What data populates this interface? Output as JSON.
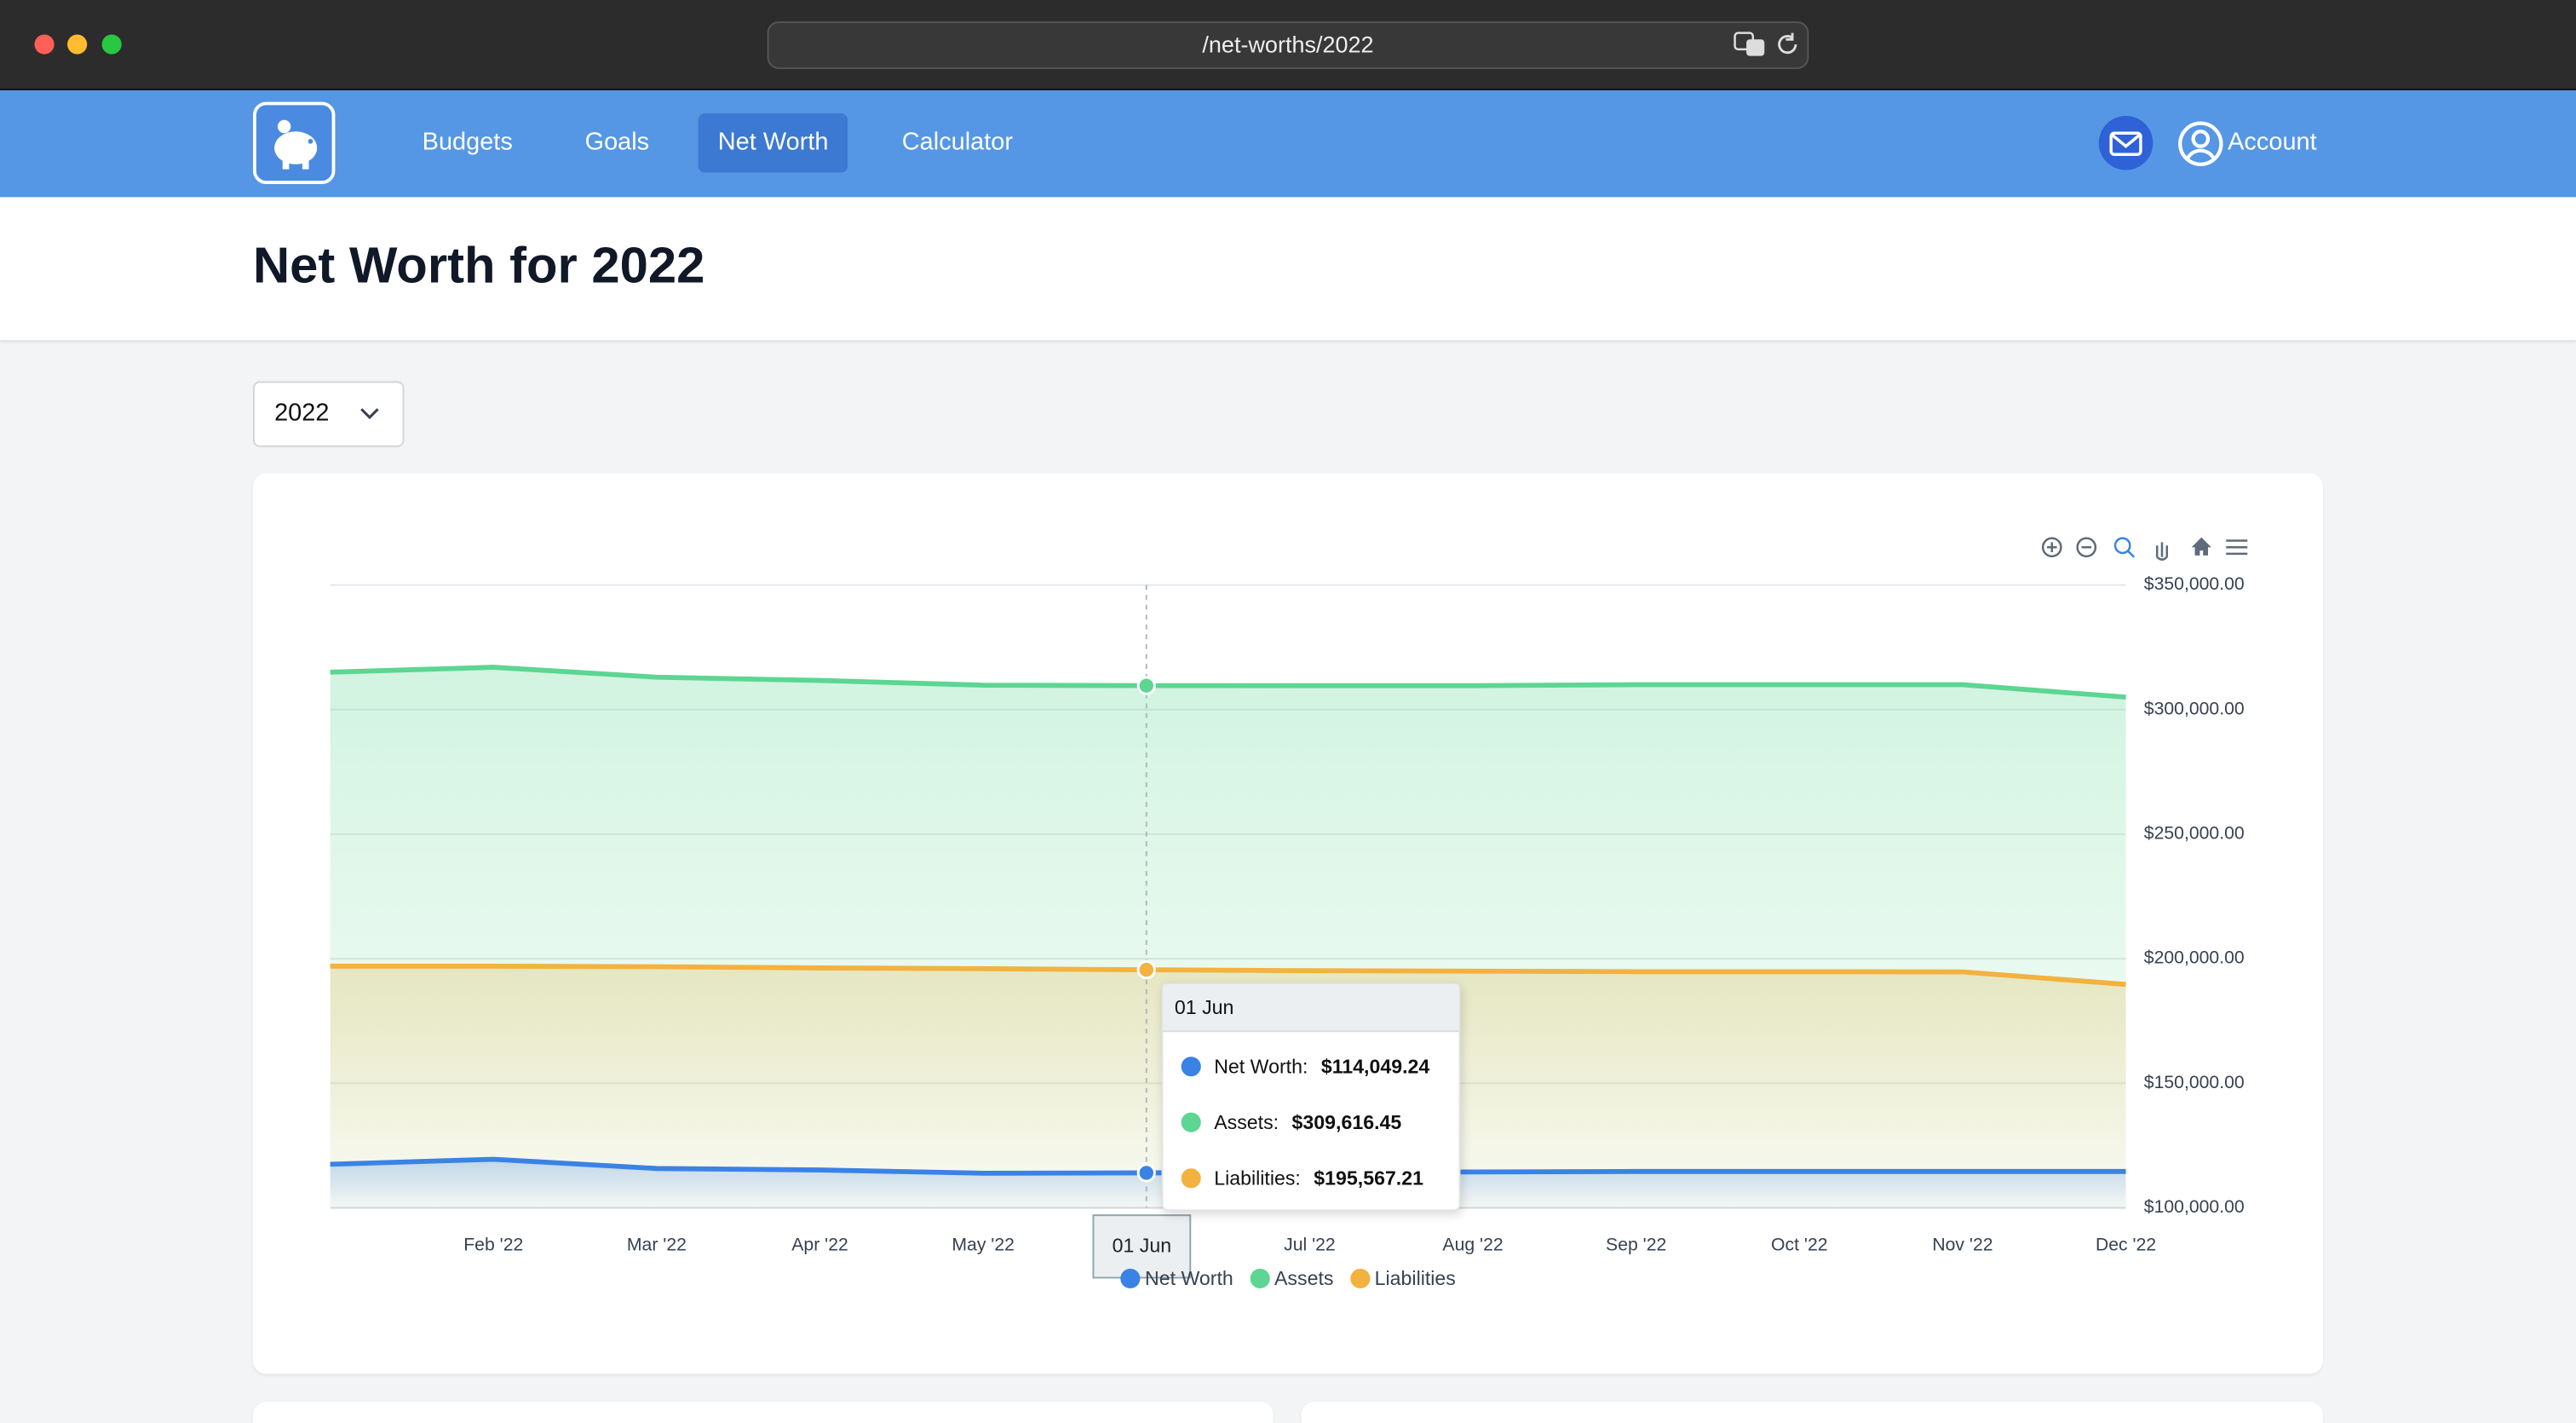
{
  "browser": {
    "url": "/net-worths/2022"
  },
  "nav": {
    "items": [
      {
        "label": "Budgets",
        "active": false
      },
      {
        "label": "Goals",
        "active": false
      },
      {
        "label": "Net Worth",
        "active": true
      },
      {
        "label": "Calculator",
        "active": false
      }
    ],
    "account": "Account"
  },
  "header": {
    "title": "Net Worth for 2022"
  },
  "year_select": {
    "value": "2022"
  },
  "chart_data": {
    "type": "area",
    "categories": [
      null,
      "Feb '22",
      "Mar '22",
      "Apr '22",
      "May '22",
      "Jun '22",
      "Jul '22",
      "Aug '22",
      "Sep '22",
      "Oct '22",
      "Nov '22",
      "Dec '22"
    ],
    "series": [
      {
        "name": "Net Worth",
        "color": "#3b82e6",
        "values": [
          117500,
          119500,
          115800,
          115200,
          113900,
          114049.24,
          114300,
          114400,
          114600,
          114600,
          114600,
          114600
        ]
      },
      {
        "name": "Assets",
        "color": "#5cd692",
        "values": [
          315000,
          317000,
          313000,
          311700,
          309800,
          309616.45,
          309600,
          309600,
          310000,
          310000,
          310000,
          305000
        ]
      },
      {
        "name": "Liabilities",
        "color": "#f3b23f",
        "values": [
          197000,
          197000,
          196800,
          196300,
          196000,
          195567.21,
          195200,
          195000,
          194800,
          194800,
          194700,
          189700
        ]
      }
    ],
    "ylim": [
      100000,
      350000
    ],
    "yticks": [
      {
        "value": 100000,
        "label": "$100,000.00"
      },
      {
        "value": 150000,
        "label": "$150,000.00"
      },
      {
        "value": 200000,
        "label": "$200,000.00"
      },
      {
        "value": 250000,
        "label": "$250,000.00"
      },
      {
        "value": 300000,
        "label": "$300,000.00"
      },
      {
        "value": 350000,
        "label": "$350,000.00"
      }
    ],
    "grid": true,
    "legend": "bottom",
    "tooltip": {
      "title": "01 Jun",
      "items": [
        {
          "label": "Net Worth:",
          "value": "$114,049.24"
        },
        {
          "label": "Assets:",
          "value": "$309,616.45"
        },
        {
          "label": "Liabilities:",
          "value": "$195,567.21"
        }
      ]
    }
  }
}
